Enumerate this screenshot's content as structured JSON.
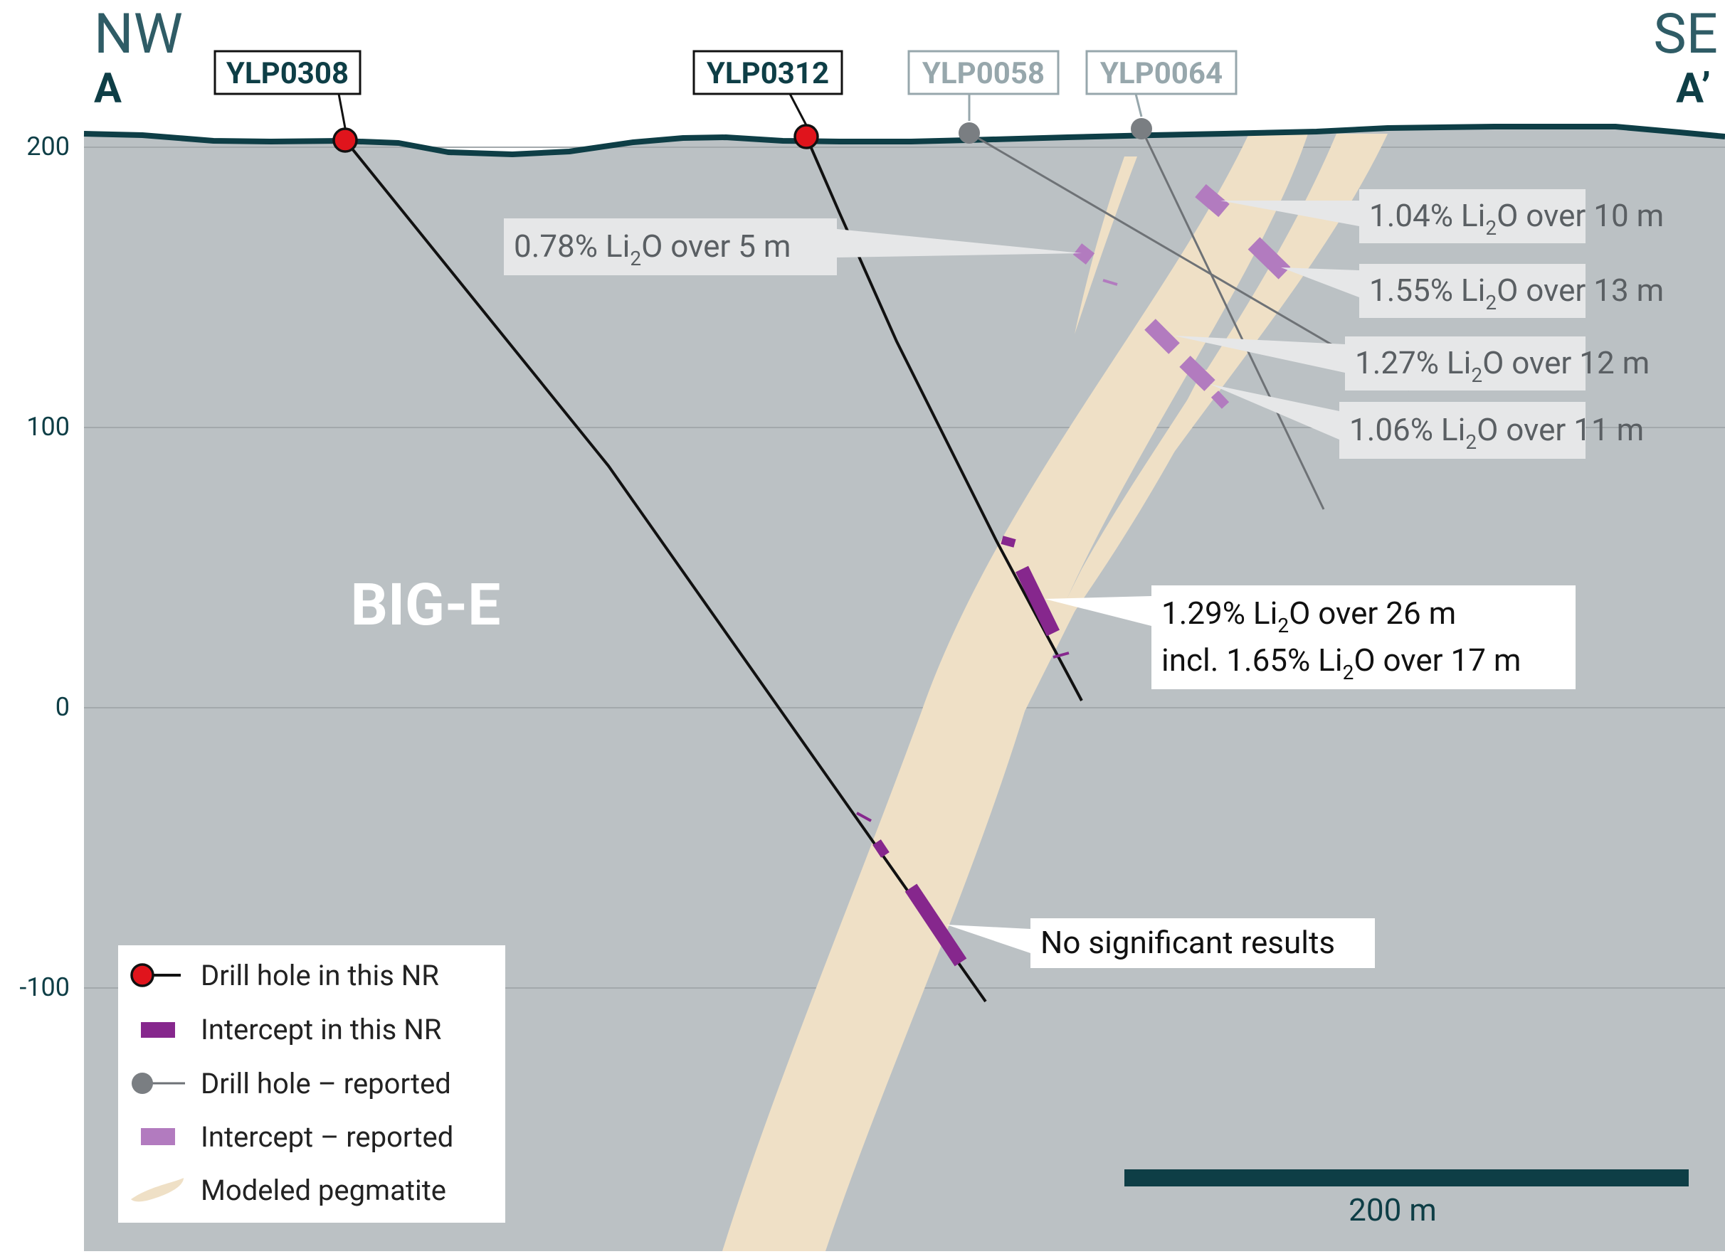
{
  "section": {
    "left_direction": "NW",
    "left_label": "A",
    "right_direction": "SE",
    "right_label": "A’",
    "area_label": "BIG-E"
  },
  "axis": {
    "ticks": [
      {
        "value": 200,
        "label": "200"
      },
      {
        "value": 100,
        "label": "100"
      },
      {
        "value": 0,
        "label": "0"
      },
      {
        "value": -100,
        "label": "-100"
      }
    ]
  },
  "holes": [
    {
      "id": "YLP0308",
      "status": "this_nr"
    },
    {
      "id": "YLP0312",
      "status": "this_nr"
    },
    {
      "id": "YLP0058",
      "status": "reported"
    },
    {
      "id": "YLP0064",
      "status": "reported"
    }
  ],
  "results": [
    {
      "lines": [
        [
          {
            "t": "0.78% Li"
          },
          {
            "t": "2",
            "sub": true
          },
          {
            "t": "O over 5 m"
          }
        ]
      ],
      "style": "reported"
    },
    {
      "lines": [
        [
          {
            "t": "1.04% Li"
          },
          {
            "t": "2",
            "sub": true
          },
          {
            "t": "O over 10 m"
          }
        ]
      ],
      "style": "reported"
    },
    {
      "lines": [
        [
          {
            "t": "1.55% Li"
          },
          {
            "t": "2",
            "sub": true
          },
          {
            "t": "O over 13 m"
          }
        ]
      ],
      "style": "reported"
    },
    {
      "lines": [
        [
          {
            "t": "1.27% Li"
          },
          {
            "t": "2",
            "sub": true
          },
          {
            "t": "O over 12 m"
          }
        ]
      ],
      "style": "reported"
    },
    {
      "lines": [
        [
          {
            "t": "1.06% Li"
          },
          {
            "t": "2",
            "sub": true
          },
          {
            "t": "O over 11 m"
          }
        ]
      ],
      "style": "reported"
    },
    {
      "lines": [
        [
          {
            "t": "1.29% Li"
          },
          {
            "t": "2",
            "sub": true
          },
          {
            "t": "O over 26 m"
          }
        ],
        [
          {
            "t": "incl. 1.65% Li"
          },
          {
            "t": "2",
            "sub": true
          },
          {
            "t": "O over 17 m"
          }
        ]
      ],
      "style": "this_nr"
    },
    {
      "lines": [
        [
          {
            "t": "No significant results"
          }
        ]
      ],
      "style": "this_nr"
    }
  ],
  "legend": [
    {
      "symbol": "drill-hole-this-nr",
      "label": "Drill hole in this NR"
    },
    {
      "symbol": "intercept-this-nr",
      "label": "Intercept in this NR"
    },
    {
      "symbol": "drill-hole-reported",
      "label": "Drill hole – reported"
    },
    {
      "symbol": "intercept-reported",
      "label": "Intercept – reported"
    },
    {
      "symbol": "modeled-pegmatite",
      "label": "Modeled pegmatite"
    }
  ],
  "scale_bar": {
    "label": "200 m"
  },
  "colors": {
    "rock": "#bbc1c4",
    "pegmatite": "#efe0c6",
    "topo_line": "#0e3e46",
    "label_dark": "#0e3e46",
    "label_reported": "#97a7ac",
    "hole_this_nr": "#e0141c",
    "hole_reported": "#7a7e82",
    "intercept_this_nr": "#86278d",
    "intercept_reported": "#b27bbf",
    "callout_reported_bg": "#e6e7e8",
    "callout_this_nr_bg": "#ffffff"
  }
}
